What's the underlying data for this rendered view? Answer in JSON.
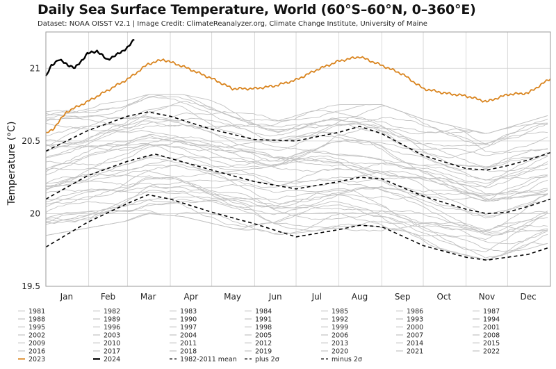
{
  "page": {
    "title": "Daily Sea Surface Temperature, World (60°S–60°N, 0–360°E)",
    "subtitle": "Dataset: NOAA OISST V2.1 | Image Credit: ClimateReanalyzer.org, Climate Change Institute, University of Maine"
  },
  "colors": {
    "historical": "#c2c2c2",
    "year_2023": "#d9841e",
    "year_2024": "#000000",
    "mean": "#000000",
    "grid": "#cfcfcf"
  },
  "chart_data": {
    "type": "line",
    "title": "Daily Sea Surface Temperature, World (60°S–60°N, 0–360°E)",
    "ylabel": "Temperature (°C)",
    "xlabel": "",
    "ylim": [
      19.5,
      21.25
    ],
    "xlim": [
      1,
      366
    ],
    "grid": true,
    "legend_position": "bottom",
    "yticks": [
      19.5,
      20,
      20.5,
      21
    ],
    "ytick_labels": [
      "19.5",
      "20",
      "20.5",
      "21"
    ],
    "month_labels": [
      "Jan",
      "Feb",
      "Mar",
      "Apr",
      "May",
      "Jun",
      "Jul",
      "Aug",
      "Sep",
      "Oct",
      "Nov",
      "Dec"
    ],
    "month_label_days": [
      16,
      46,
      75,
      106,
      136,
      167,
      197,
      228,
      259,
      289,
      320,
      350
    ],
    "month_boundary_days": [
      32,
      60,
      91,
      121,
      152,
      182,
      213,
      244,
      274,
      305,
      335
    ],
    "historical_years": [
      "1981",
      "1982",
      "1983",
      "1984",
      "1985",
      "1986",
      "1987",
      "1988",
      "1989",
      "1990",
      "1991",
      "1992",
      "1993",
      "1994",
      "1995",
      "1996",
      "1997",
      "1998",
      "1999",
      "2000",
      "2001",
      "2002",
      "2003",
      "2004",
      "2005",
      "2006",
      "2007",
      "2008",
      "2009",
      "2010",
      "2011",
      "2012",
      "2013",
      "2014",
      "2015",
      "2016",
      "2017",
      "2018",
      "2019",
      "2020",
      "2021",
      "2022"
    ],
    "historical_envelope": {
      "days": [
        1,
        60,
        75,
        100,
        136,
        167,
        213,
        244,
        274,
        320,
        366
      ],
      "low": [
        19.85,
        19.95,
        20.0,
        19.98,
        19.9,
        19.85,
        19.9,
        19.85,
        19.78,
        19.68,
        19.8
      ],
      "high": [
        20.7,
        20.78,
        20.82,
        20.82,
        20.75,
        20.68,
        20.75,
        20.75,
        20.65,
        20.55,
        20.68
      ]
    },
    "series": [
      {
        "name": "2023",
        "style": "solid",
        "days": [
          1,
          6,
          16,
          31,
          46,
          61,
          75,
          86,
          101,
          121,
          136,
          152,
          167,
          182,
          197,
          213,
          228,
          244,
          259,
          274,
          289,
          305,
          320,
          335,
          350,
          366
        ],
        "values": [
          20.55,
          20.58,
          20.7,
          20.77,
          20.85,
          20.93,
          21.03,
          21.06,
          21.01,
          20.93,
          20.86,
          20.86,
          20.88,
          20.92,
          20.99,
          21.05,
          21.08,
          21.02,
          20.96,
          20.86,
          20.83,
          20.81,
          20.77,
          20.82,
          20.83,
          20.93
        ]
      },
      {
        "name": "2024",
        "style": "solid",
        "days": [
          1,
          5,
          10,
          16,
          22,
          31,
          38,
          45,
          52,
          61,
          65
        ],
        "values": [
          20.94,
          21.02,
          21.06,
          21.03,
          21.0,
          21.1,
          21.12,
          21.06,
          21.09,
          21.15,
          21.2
        ]
      },
      {
        "name": "1982-2011 mean",
        "style": "dashed",
        "days": [
          1,
          31,
          60,
          80,
          91,
          121,
          152,
          182,
          213,
          228,
          244,
          274,
          305,
          320,
          335,
          350,
          366
        ],
        "values": [
          20.1,
          20.26,
          20.36,
          20.41,
          20.38,
          20.3,
          20.22,
          20.17,
          20.22,
          20.25,
          20.24,
          20.12,
          20.03,
          20.0,
          20.01,
          20.05,
          20.1
        ]
      },
      {
        "name": "plus 2σ",
        "style": "dashed",
        "days": [
          1,
          31,
          60,
          75,
          91,
          121,
          152,
          182,
          213,
          228,
          244,
          274,
          305,
          320,
          335,
          350,
          366
        ],
        "values": [
          20.43,
          20.57,
          20.67,
          20.7,
          20.67,
          20.58,
          20.51,
          20.5,
          20.56,
          20.6,
          20.55,
          20.4,
          20.31,
          20.3,
          20.33,
          20.37,
          20.42
        ]
      },
      {
        "name": "minus 2σ",
        "style": "dashed",
        "days": [
          1,
          31,
          60,
          75,
          91,
          121,
          152,
          182,
          213,
          228,
          244,
          274,
          305,
          320,
          335,
          350,
          366
        ],
        "values": [
          19.77,
          19.94,
          20.07,
          20.13,
          20.1,
          20.01,
          19.93,
          19.84,
          19.89,
          19.92,
          19.91,
          19.78,
          19.7,
          19.68,
          19.7,
          19.72,
          19.77
        ]
      }
    ]
  },
  "legend": {
    "columns": [
      [
        "1981",
        "1988",
        "1995",
        "2002",
        "2009",
        "2016",
        "2023"
      ],
      [
        "1982",
        "1989",
        "1996",
        "2003",
        "2010",
        "2017",
        "2024"
      ],
      [
        "1983",
        "1990",
        "1997",
        "2004",
        "2011",
        "2018",
        "1982-2011 mean"
      ],
      [
        "1984",
        "1991",
        "1998",
        "2005",
        "2012",
        "2019",
        "plus 2σ"
      ],
      [
        "1985",
        "1992",
        "1999",
        "2006",
        "2013",
        "2020",
        "minus 2σ"
      ],
      [
        "1986",
        "1993",
        "2000",
        "2007",
        "2014",
        "2021"
      ],
      [
        "1987",
        "1994",
        "2001",
        "2008",
        "2015",
        "2022"
      ]
    ]
  }
}
